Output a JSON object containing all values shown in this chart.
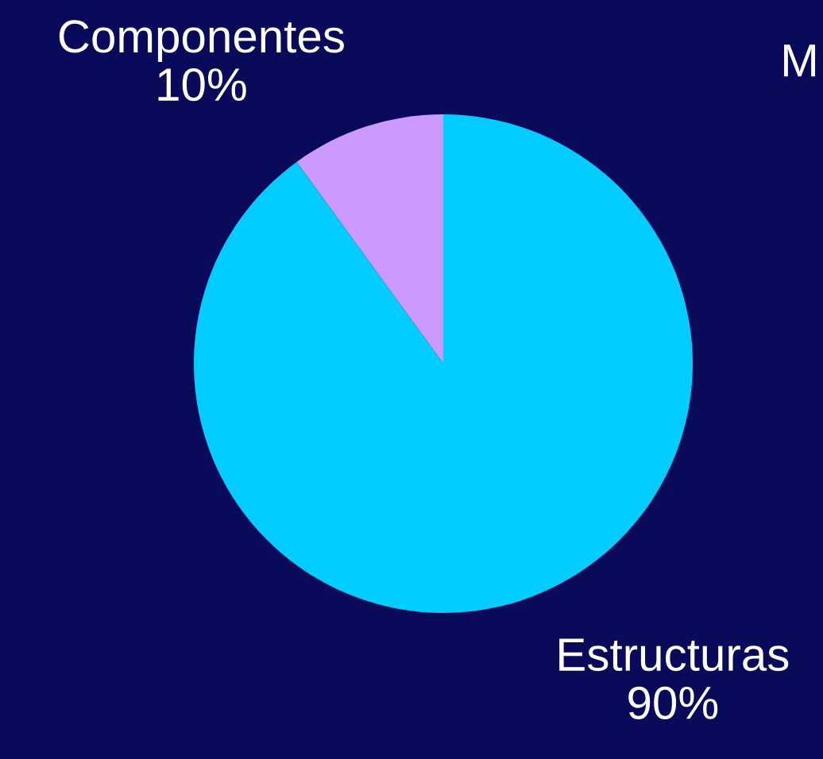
{
  "chart_data": {
    "type": "pie",
    "categories": [
      "Componentes",
      "Estructuras"
    ],
    "values": [
      10,
      90
    ],
    "value_labels": [
      "10%",
      "90%"
    ],
    "colors": [
      "#cc99ff",
      "#00ccff"
    ],
    "annotations": [
      "M"
    ],
    "legend": false
  }
}
